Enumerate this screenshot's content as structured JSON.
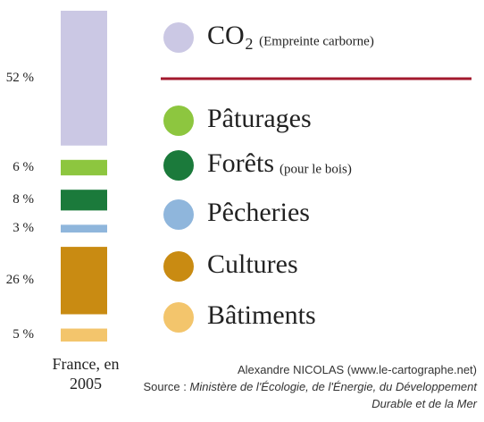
{
  "chart_data": {
    "type": "bar",
    "stacked": true,
    "categories": [
      "France, en 2005"
    ],
    "series": [
      {
        "name": "CO₂",
        "note": "(Empreinte carborne)",
        "color": "#cbc8e4",
        "values": [
          52
        ],
        "value_labels": [
          "52 %"
        ]
      },
      {
        "name": "Pâturages",
        "color": "#8dc63f",
        "values": [
          6
        ],
        "value_labels": [
          "6 %"
        ]
      },
      {
        "name": "Forêts",
        "note": "(pour le bois)",
        "color": "#1b7a3b",
        "values": [
          8
        ],
        "value_labels": [
          "8 %"
        ]
      },
      {
        "name": "Pêcheries",
        "color": "#8fb6dc",
        "values": [
          3
        ],
        "value_labels": [
          "3 %"
        ]
      },
      {
        "name": "Cultures",
        "color": "#c98b12",
        "values": [
          26
        ],
        "value_labels": [
          "26 %"
        ]
      },
      {
        "name": "Bâtiments",
        "color": "#f3c56c",
        "values": [
          5
        ],
        "value_labels": [
          "5 %"
        ]
      }
    ],
    "credit": "Alexandre NICOLAS (www.le-cartographe.net)",
    "source_label": "Source :",
    "source": "Ministère de l'Écologie, de l'Énergie, du Développement Durable et de la Mer"
  }
}
